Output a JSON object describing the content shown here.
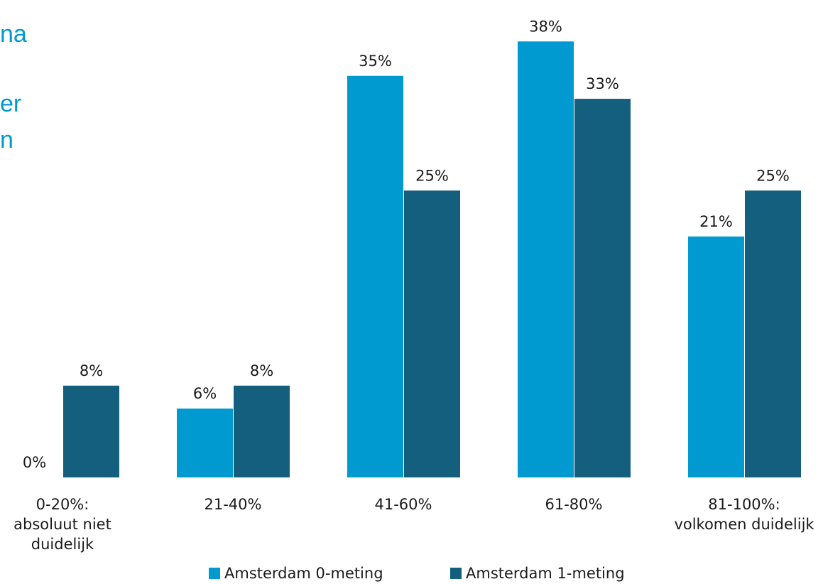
{
  "title_fragments": [
    "na",
    "er",
    "n"
  ],
  "chart_data": {
    "type": "bar",
    "categories": [
      [
        "0-20%:",
        "absoluut niet",
        "duidelijk"
      ],
      [
        "21-40%"
      ],
      [
        "41-60%"
      ],
      [
        "61-80%"
      ],
      [
        "81-100%:",
        "volkomen duidelijk"
      ]
    ],
    "series": [
      {
        "name": "Amsterdam 0-meting",
        "color": "#0099d0",
        "values": [
          0,
          6,
          35,
          38,
          21
        ]
      },
      {
        "name": "Amsterdam 1-meting",
        "color": "#155f7e",
        "values": [
          8,
          8,
          25,
          33,
          25
        ]
      }
    ],
    "value_suffix": "%",
    "ylim": [
      0,
      40
    ],
    "legend_position": "bottom",
    "grid": false
  }
}
